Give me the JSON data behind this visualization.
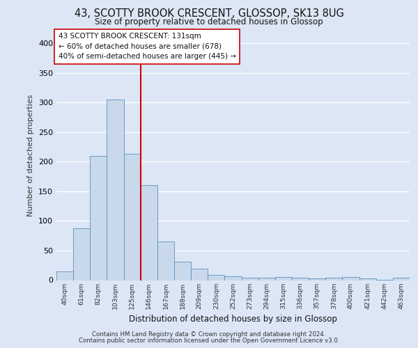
{
  "title_line1": "43, SCOTTY BROOK CRESCENT, GLOSSOP, SK13 8UG",
  "title_line2": "Size of property relative to detached houses in Glossop",
  "xlabel": "Distribution of detached houses by size in Glossop",
  "ylabel": "Number of detached properties",
  "bar_labels": [
    "40sqm",
    "61sqm",
    "82sqm",
    "103sqm",
    "125sqm",
    "146sqm",
    "167sqm",
    "188sqm",
    "209sqm",
    "230sqm",
    "252sqm",
    "273sqm",
    "294sqm",
    "315sqm",
    "336sqm",
    "357sqm",
    "378sqm",
    "400sqm",
    "421sqm",
    "442sqm",
    "463sqm"
  ],
  "bar_heights": [
    15,
    88,
    210,
    305,
    213,
    160,
    65,
    31,
    19,
    9,
    6,
    4,
    4,
    5,
    4,
    3,
    4,
    5,
    3,
    1,
    4
  ],
  "bar_color": "#c9d9eb",
  "bar_edge_color": "#5b8fbf",
  "ylim": [
    0,
    420
  ],
  "yticks": [
    0,
    50,
    100,
    150,
    200,
    250,
    300,
    350,
    400
  ],
  "vline_x": 4.5,
  "vline_color": "#cc0000",
  "annotation_text": "43 SCOTTY BROOK CRESCENT: 131sqm\n← 60% of detached houses are smaller (678)\n40% of semi-detached houses are larger (445) →",
  "annotation_box_color": "#ffffff",
  "annotation_box_edge": "#cc0000",
  "footer_line1": "Contains HM Land Registry data © Crown copyright and database right 2024.",
  "footer_line2": "Contains public sector information licensed under the Open Government Licence v3.0.",
  "bg_color": "#dce6f5",
  "plot_bg_color": "#dce6f5",
  "grid_color": "#ffffff"
}
